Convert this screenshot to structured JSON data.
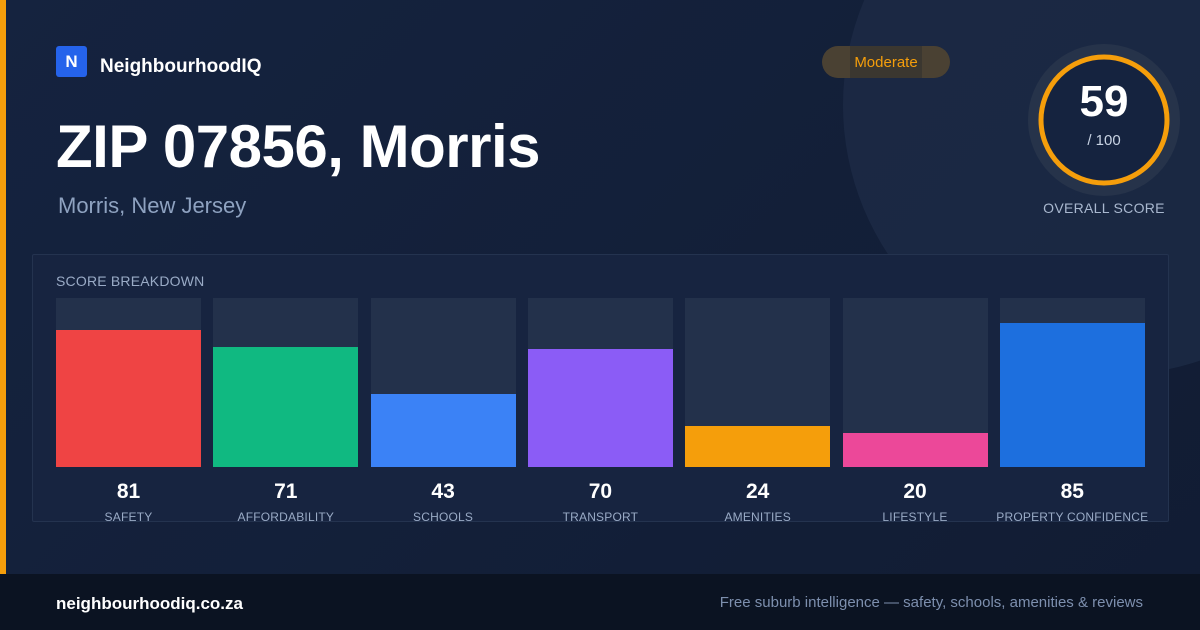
{
  "brand": {
    "logo_letter": "N",
    "name": "NeighbourhoodIQ"
  },
  "badge": {
    "label": "Moderate"
  },
  "location": {
    "title": "ZIP 07856, Morris",
    "subtitle": "Morris, New Jersey"
  },
  "score": {
    "value": "59",
    "out_of": "/ 100",
    "fraction": 0.59,
    "label": "OVERALL SCORE"
  },
  "breakdown": {
    "title": "SCORE BREAKDOWN",
    "items": [
      {
        "label": "SAFETY",
        "value": 81,
        "color": "#ef4444"
      },
      {
        "label": "AFFORDABILITY",
        "value": 71,
        "color": "#10b981"
      },
      {
        "label": "SCHOOLS",
        "value": 43,
        "color": "#3b82f6"
      },
      {
        "label": "TRANSPORT",
        "value": 70,
        "color": "#8b5cf6"
      },
      {
        "label": "AMENITIES",
        "value": 24,
        "color": "#f59e0b"
      },
      {
        "label": "LIFESTYLE",
        "value": 20,
        "color": "#ec4899"
      },
      {
        "label": "PROPERTY CONFIDENCE",
        "value": 85,
        "color": "#1d6fde"
      }
    ]
  },
  "footer": {
    "domain": "neighbourhoodiq.co.za",
    "tagline": "Free suburb intelligence — safety, schools, amenities & reviews"
  },
  "colors": {
    "accent": "#f59e0b",
    "brand": "#2563eb",
    "background": "#15233f"
  }
}
